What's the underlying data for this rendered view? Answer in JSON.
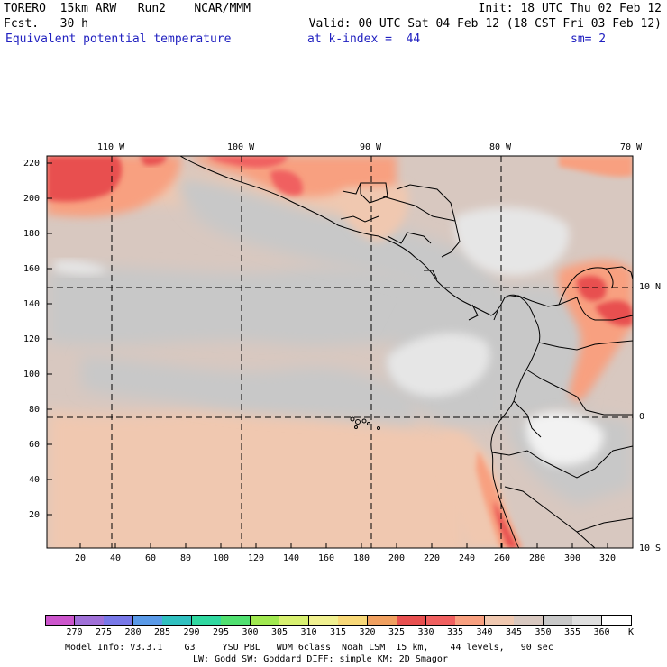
{
  "header": {
    "line1_left": "TORERO  15km ARW   Run2    NCAR/MMM",
    "line1_right": "Init: 18 UTC Thu 02 Feb 12",
    "line2_left": "Fcst.   30 h",
    "line2_right": "Valid: 00 UTC Sat 04 Feb 12 (18 CST Fri 03 Feb 12)",
    "field": "Equivalent potential temperature",
    "level": "at k-index =  44",
    "smooth": "sm= 2"
  },
  "map": {
    "top_lon_labels": [
      "110 W",
      "100 W",
      "90 W",
      "80 W",
      "70 W"
    ],
    "right_lat_labels": [
      "10 N",
      "0",
      "10 S"
    ],
    "left_ticks": [
      "220",
      "200",
      "180",
      "160",
      "140",
      "120",
      "100",
      "80",
      "60",
      "40",
      "20"
    ],
    "bottom_ticks": [
      "20",
      "40",
      "60",
      "80",
      "100",
      "120",
      "140",
      "160",
      "180",
      "200",
      "220",
      "240",
      "260",
      "280",
      "300",
      "320"
    ]
  },
  "colorbar": {
    "labels": [
      "270",
      "275",
      "280",
      "285",
      "290",
      "295",
      "300",
      "305",
      "310",
      "315",
      "320",
      "325",
      "330",
      "335",
      "340",
      "345",
      "350",
      "355",
      "360"
    ],
    "unit": "K",
    "colors": [
      "#cc55cc",
      "#a070d8",
      "#7878e8",
      "#5a9ae8",
      "#30c0c0",
      "#30d8a0",
      "#50e070",
      "#a0e850",
      "#d8f070",
      "#f0f090",
      "#f8d878",
      "#f0a060",
      "#e85050",
      "#f06060",
      "#f8a080",
      "#f0c8b0",
      "#d8c8c0",
      "#c8c8c8",
      "#e0e0e0",
      "#ffffff"
    ]
  },
  "footer": {
    "line1": "Model Info: V3.3.1    G3     YSU PBL   WDM 6class  Noah LSM  15 km,    44 levels,   90 sec",
    "line2": "LW: Godd SW: Goddard DIFF: simple KM: 2D Smagor"
  }
}
